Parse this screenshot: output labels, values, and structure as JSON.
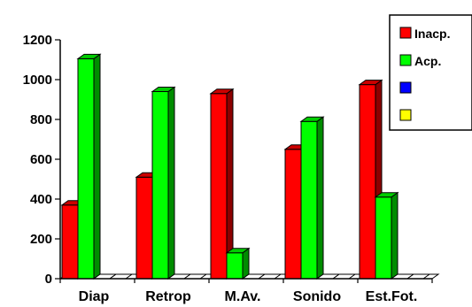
{
  "chart_data": {
    "type": "bar",
    "style": "3d-clustered-column",
    "categories": [
      "Diap",
      "Retrop",
      "M.Av.",
      "Sonido",
      "Est.Fot."
    ],
    "series": [
      {
        "name": "Inacp.",
        "color": "#ff0000",
        "values": [
          370,
          510,
          930,
          650,
          975
        ]
      },
      {
        "name": "Acp.",
        "color": "#00ff00",
        "values": [
          1105,
          940,
          130,
          790,
          410
        ]
      },
      {
        "name": "",
        "color": "#0000ff",
        "values": [
          0,
          0,
          0,
          0,
          0
        ]
      },
      {
        "name": "",
        "color": "#ffff00",
        "values": [
          0,
          0,
          0,
          0,
          0
        ]
      }
    ],
    "yticks": [
      "0",
      "200",
      "400",
      "600",
      "800",
      "1000",
      "1200"
    ],
    "ylim": [
      0,
      1200
    ],
    "grid": false,
    "legend_position": "top-right"
  }
}
